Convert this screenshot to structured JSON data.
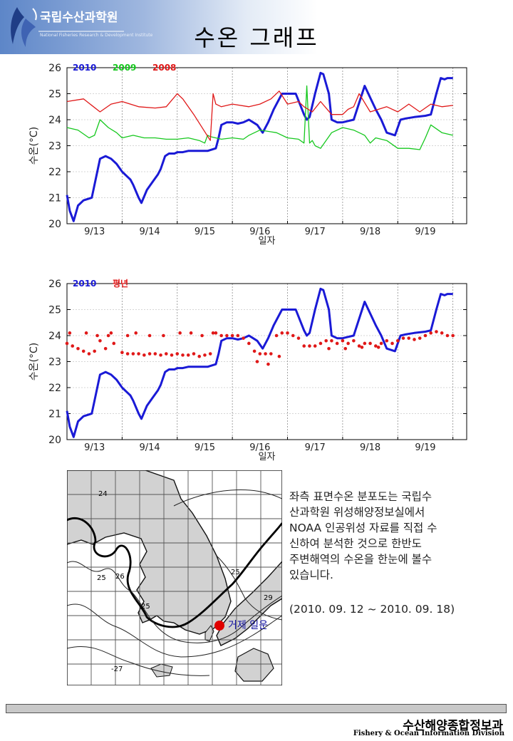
{
  "header": {
    "org_name": "국립수산과학원",
    "org_subtitle": "National Fisheries Research & Development Institute",
    "title": "수온 그래프",
    "brand_color": "#3a5da8"
  },
  "chart_data": [
    {
      "type": "line",
      "ylabel": "수온(°C)",
      "xlabel": "일자",
      "ylim": [
        20,
        26
      ],
      "yticks": [
        20,
        21,
        22,
        23,
        24,
        25,
        26
      ],
      "xlim": [
        0,
        7.25
      ],
      "xticks": [
        {
          "pos": 0.5,
          "label": "9/13"
        },
        {
          "pos": 1.5,
          "label": "9/14"
        },
        {
          "pos": 2.5,
          "label": "9/15"
        },
        {
          "pos": 3.5,
          "label": "9/16"
        },
        {
          "pos": 4.5,
          "label": "9/17"
        },
        {
          "pos": 5.5,
          "label": "9/18"
        },
        {
          "pos": 6.5,
          "label": "9/19"
        }
      ],
      "day_boundaries": [
        1,
        2,
        3,
        4,
        5,
        6,
        7
      ],
      "series": [
        {
          "name": "2010",
          "color": "#1a1ad6",
          "width": 3,
          "x": [
            0,
            0.05,
            0.12,
            0.2,
            0.3,
            0.45,
            0.6,
            0.7,
            0.8,
            0.9,
            1.0,
            1.1,
            1.15,
            1.2,
            1.3,
            1.35,
            1.45,
            1.55,
            1.65,
            1.7,
            1.78,
            1.85,
            1.95,
            2.0,
            2.1,
            2.2,
            2.4,
            2.55,
            2.7,
            2.75,
            2.8,
            2.9,
            3.0,
            3.1,
            3.2,
            3.3,
            3.45,
            3.55,
            3.65,
            3.75,
            3.9,
            4.0,
            4.15,
            4.3,
            4.35,
            4.4,
            4.5,
            4.6,
            4.65,
            4.75,
            4.8,
            4.9,
            5.0,
            5.1,
            5.2,
            5.4,
            5.6,
            5.7,
            5.8,
            5.95,
            6.05,
            6.15,
            6.3,
            6.5,
            6.6,
            6.7,
            6.78,
            6.85,
            6.9,
            7.0
          ],
          "y": [
            21.1,
            20.5,
            20.1,
            20.7,
            20.9,
            21.0,
            22.5,
            22.6,
            22.5,
            22.3,
            22.0,
            21.8,
            21.7,
            21.5,
            21.0,
            20.8,
            21.3,
            21.6,
            21.9,
            22.1,
            22.6,
            22.7,
            22.7,
            22.75,
            22.75,
            22.8,
            22.8,
            22.8,
            22.9,
            23.3,
            23.8,
            23.9,
            23.9,
            23.85,
            23.9,
            24.0,
            23.8,
            23.5,
            23.9,
            24.4,
            25.0,
            25.0,
            25.0,
            24.2,
            24.0,
            24.1,
            25.0,
            25.8,
            25.75,
            25.0,
            24.0,
            23.9,
            23.9,
            23.95,
            24.0,
            25.3,
            24.4,
            24.0,
            23.5,
            23.4,
            24.0,
            24.05,
            24.1,
            24.15,
            24.2,
            25.0,
            25.6,
            25.55,
            25.6,
            25.6
          ]
        },
        {
          "name": "2009",
          "color": "#16c81e",
          "width": 1.3,
          "x": [
            0,
            0.2,
            0.4,
            0.5,
            0.6,
            0.75,
            0.9,
            1.0,
            1.2,
            1.4,
            1.6,
            1.8,
            2.0,
            2.2,
            2.4,
            2.5,
            2.55,
            2.6,
            2.8,
            3.0,
            3.2,
            3.3,
            3.5,
            3.8,
            4.0,
            4.2,
            4.3,
            4.35,
            4.4,
            4.45,
            4.5,
            4.6,
            4.8,
            5.0,
            5.2,
            5.4,
            5.5,
            5.6,
            5.8,
            6.0,
            6.2,
            6.4,
            6.5,
            6.6,
            6.8,
            7.0
          ],
          "y": [
            23.7,
            23.6,
            23.3,
            23.4,
            24.0,
            23.7,
            23.5,
            23.3,
            23.4,
            23.3,
            23.3,
            23.25,
            23.25,
            23.3,
            23.2,
            23.1,
            23.4,
            23.35,
            23.25,
            23.3,
            23.25,
            23.4,
            23.6,
            23.5,
            23.3,
            23.25,
            23.1,
            25.3,
            23.1,
            23.2,
            23.0,
            22.9,
            23.5,
            23.7,
            23.6,
            23.4,
            23.1,
            23.3,
            23.2,
            22.9,
            22.9,
            22.85,
            23.3,
            23.8,
            23.5,
            23.4
          ]
        },
        {
          "name": "2008",
          "color": "#e01818",
          "width": 1.3,
          "x": [
            0,
            0.3,
            0.6,
            0.8,
            1.0,
            1.3,
            1.6,
            1.8,
            2.0,
            2.1,
            2.3,
            2.6,
            2.65,
            2.7,
            2.8,
            3.0,
            3.3,
            3.5,
            3.7,
            3.85,
            4.0,
            4.2,
            4.3,
            4.45,
            4.6,
            4.8,
            5.0,
            5.1,
            5.2,
            5.3,
            5.5,
            5.8,
            6.0,
            6.2,
            6.4,
            6.6,
            6.8,
            7.0
          ],
          "y": [
            24.7,
            24.8,
            24.3,
            24.6,
            24.7,
            24.5,
            24.45,
            24.5,
            25.0,
            24.8,
            24.2,
            23.2,
            25.0,
            24.6,
            24.5,
            24.6,
            24.5,
            24.6,
            24.8,
            25.1,
            24.6,
            24.7,
            24.5,
            24.3,
            24.7,
            24.2,
            24.2,
            24.4,
            24.5,
            25.0,
            24.3,
            24.5,
            24.3,
            24.6,
            24.3,
            24.6,
            24.5,
            24.55
          ]
        }
      ]
    },
    {
      "type": "line",
      "ylabel": "수온(°C)",
      "xlabel": "일자",
      "ylim": [
        20,
        26
      ],
      "yticks": [
        20,
        21,
        22,
        23,
        24,
        25,
        26
      ],
      "xlim": [
        0,
        7.25
      ],
      "xticks": [
        {
          "pos": 0.5,
          "label": "9/13"
        },
        {
          "pos": 1.5,
          "label": "9/14"
        },
        {
          "pos": 2.5,
          "label": "9/15"
        },
        {
          "pos": 3.5,
          "label": "9/16"
        },
        {
          "pos": 4.5,
          "label": "9/17"
        },
        {
          "pos": 5.5,
          "label": "9/18"
        },
        {
          "pos": 6.5,
          "label": "9/19"
        }
      ],
      "day_boundaries": [
        1,
        2,
        3,
        4,
        5,
        6,
        7
      ],
      "series": [
        {
          "name": "2010",
          "color": "#1a1ad6",
          "width": 3,
          "x": [
            0,
            0.05,
            0.12,
            0.2,
            0.3,
            0.45,
            0.6,
            0.7,
            0.8,
            0.9,
            1.0,
            1.1,
            1.15,
            1.2,
            1.3,
            1.35,
            1.45,
            1.55,
            1.65,
            1.7,
            1.78,
            1.85,
            1.95,
            2.0,
            2.1,
            2.2,
            2.4,
            2.55,
            2.7,
            2.75,
            2.8,
            2.9,
            3.0,
            3.1,
            3.2,
            3.3,
            3.45,
            3.55,
            3.65,
            3.75,
            3.9,
            4.0,
            4.15,
            4.3,
            4.35,
            4.4,
            4.5,
            4.6,
            4.65,
            4.75,
            4.8,
            4.9,
            5.0,
            5.1,
            5.2,
            5.4,
            5.6,
            5.7,
            5.8,
            5.95,
            6.05,
            6.15,
            6.3,
            6.5,
            6.6,
            6.7,
            6.78,
            6.85,
            6.9,
            7.0
          ],
          "y": [
            21.1,
            20.5,
            20.1,
            20.7,
            20.9,
            21.0,
            22.5,
            22.6,
            22.5,
            22.3,
            22.0,
            21.8,
            21.7,
            21.5,
            21.0,
            20.8,
            21.3,
            21.6,
            21.9,
            22.1,
            22.6,
            22.7,
            22.7,
            22.75,
            22.75,
            22.8,
            22.8,
            22.8,
            22.9,
            23.3,
            23.8,
            23.9,
            23.9,
            23.85,
            23.9,
            24.0,
            23.8,
            23.5,
            23.9,
            24.4,
            25.0,
            25.0,
            25.0,
            24.2,
            24.0,
            24.1,
            25.0,
            25.8,
            25.75,
            25.0,
            24.0,
            23.9,
            23.9,
            23.95,
            24.0,
            25.3,
            24.4,
            24.0,
            23.5,
            23.4,
            24.0,
            24.05,
            24.1,
            24.15,
            24.2,
            25.0,
            25.6,
            25.55,
            25.6,
            25.6
          ]
        },
        {
          "name": "평년",
          "color": "#e01818",
          "style": "dots",
          "x": [
            0,
            0.1,
            0.2,
            0.3,
            0.4,
            0.5,
            0.6,
            0.7,
            0.75,
            0.85,
            1.0,
            1.1,
            1.2,
            1.3,
            1.4,
            1.5,
            1.6,
            1.7,
            1.8,
            1.9,
            2.0,
            2.1,
            2.2,
            2.3,
            2.4,
            2.5,
            2.6,
            2.7,
            2.8,
            2.9,
            3.0,
            3.1,
            3.2,
            3.3,
            3.4,
            3.5,
            3.6,
            3.7,
            3.8,
            3.9,
            4.0,
            4.1,
            4.2,
            4.3,
            4.4,
            4.5,
            4.6,
            4.7,
            4.8,
            4.9,
            5.0,
            5.1,
            5.2,
            5.3,
            5.4,
            5.5,
            5.6,
            5.7,
            5.8,
            5.9,
            6.0,
            6.1,
            6.2,
            6.3,
            6.4,
            6.5,
            6.6,
            6.7,
            6.8,
            6.9,
            7.0,
            0.05,
            0.35,
            0.55,
            0.8,
            1.1,
            1.25,
            1.5,
            1.75,
            2.05,
            2.25,
            2.45,
            2.65,
            3.45,
            3.65,
            3.85,
            4.75,
            5.05,
            5.35,
            5.65
          ],
          "y": [
            23.7,
            23.6,
            23.5,
            23.4,
            23.3,
            23.4,
            23.8,
            23.5,
            24.0,
            23.7,
            23.35,
            23.3,
            23.3,
            23.3,
            23.25,
            23.3,
            23.3,
            23.25,
            23.3,
            23.25,
            23.3,
            23.25,
            23.25,
            23.3,
            23.2,
            23.25,
            23.3,
            24.1,
            24.0,
            24.0,
            24.0,
            24.0,
            23.9,
            23.7,
            23.4,
            23.3,
            23.3,
            23.3,
            24.0,
            24.1,
            24.1,
            24.0,
            23.9,
            23.6,
            23.6,
            23.6,
            23.7,
            23.8,
            23.8,
            23.7,
            23.8,
            23.7,
            23.8,
            23.6,
            23.7,
            23.7,
            23.6,
            23.7,
            23.8,
            23.7,
            23.8,
            23.9,
            23.9,
            23.85,
            23.9,
            24.0,
            24.1,
            24.15,
            24.1,
            24.0,
            24.0,
            24.1,
            24.1,
            24.0,
            24.1,
            24.0,
            24.1,
            24.0,
            24.0,
            24.1,
            24.1,
            24.0,
            24.1,
            23.0,
            22.9,
            23.2,
            23.5,
            23.5,
            23.55,
            23.55
          ]
        }
      ]
    }
  ],
  "map": {
    "contour_labels": [
      "24",
      "25",
      "26",
      "25",
      "25",
      "-27",
      "29"
    ],
    "marker_label": "거제 일운",
    "marker_color": "#e00000",
    "land_color": "#d2d2d2",
    "sea_color": "#ffffff"
  },
  "description": {
    "lines": [
      "좌측 표면수온 분포도는 국립수",
      "산과학원 위성해양정보실에서",
      "NOAA 인공위성 자료를 직접 수",
      "신하여 분석한 것으로  한반도",
      "주변해역의 수온을 한눈에 볼수",
      "있습니다."
    ],
    "range": "(2010. 09. 12 ~ 2010. 09. 18)"
  },
  "footer": {
    "title_ko": "수산해양종합정보과",
    "title_en": "Fishery & Ocean Information Division"
  }
}
